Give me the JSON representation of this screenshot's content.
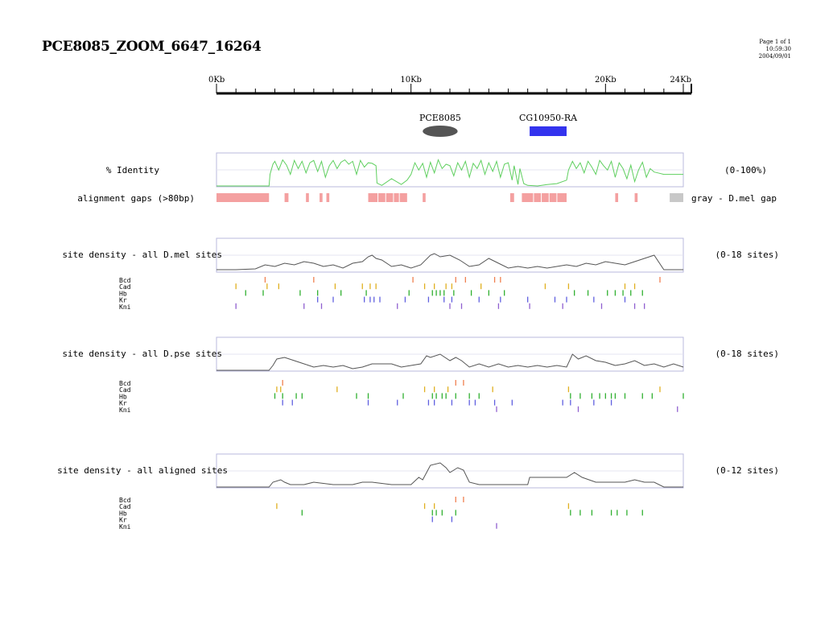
{
  "page": {
    "title": "PCE8085_ZOOM_6647_16264",
    "page_label": "Page 1 of 1",
    "time": "10:59:30",
    "date": "2004/09/01"
  },
  "colors": {
    "identity_line": "#5fcf5f",
    "gap_pink": "#f4a0a0",
    "gap_gray": "#c8c8c8",
    "panel_border": "#b8b8dc",
    "density_line": "#555555",
    "gene_blue": "#3333ee",
    "ellipse_fill": "#555555",
    "Bcd": "#f08050",
    "Cad": "#e0b020",
    "Hb": "#30b030",
    "Kr": "#6060e0",
    "Kni": "#9060d0"
  },
  "chart_data": {
    "type": "genome-track",
    "axis": {
      "unit": "Kb",
      "range": [
        0,
        24
      ],
      "tick_labels": [
        {
          "kb": 0,
          "label": "0Kb"
        },
        {
          "kb": 10,
          "label": "10Kb"
        },
        {
          "kb": 20,
          "label": "20Kb"
        },
        {
          "kb": 24,
          "label": "24Kb"
        }
      ]
    },
    "features": [
      {
        "name": "PCE8085",
        "shape": "ellipse",
        "start": 10.6,
        "end": 12.4
      },
      {
        "name": "CG10950-RA",
        "shape": "box",
        "start": 16.1,
        "end": 18.0
      }
    ],
    "identity": {
      "label": "% Identity",
      "range_label": "(0-100%)",
      "ylim": [
        0,
        100
      ],
      "x": [
        0,
        2.7,
        2.75,
        2.9,
        3.0,
        3.2,
        3.4,
        3.6,
        3.8,
        4.0,
        4.2,
        4.4,
        4.6,
        4.8,
        5.0,
        5.2,
        5.4,
        5.6,
        5.8,
        6.0,
        6.2,
        6.4,
        6.6,
        6.8,
        7.0,
        7.2,
        7.4,
        7.6,
        7.8,
        8.0,
        8.2,
        8.25,
        8.5,
        9.0,
        9.5,
        9.8,
        10.0,
        10.2,
        10.4,
        10.6,
        10.8,
        11.0,
        11.2,
        11.4,
        11.6,
        11.8,
        12.0,
        12.2,
        12.4,
        12.6,
        12.8,
        13.0,
        13.2,
        13.4,
        13.6,
        13.8,
        14.0,
        14.2,
        14.4,
        14.6,
        14.8,
        15.0,
        15.2,
        15.3,
        15.5,
        15.6,
        15.8,
        16.0,
        16.5,
        17.0,
        17.5,
        18.0,
        18.1,
        18.3,
        18.5,
        18.7,
        18.9,
        19.1,
        19.3,
        19.5,
        19.7,
        19.9,
        20.1,
        20.3,
        20.5,
        20.7,
        20.9,
        21.1,
        21.3,
        21.5,
        21.7,
        21.9,
        22.1,
        22.3,
        22.5,
        22.7,
        23.0,
        23.5,
        24.0
      ],
      "y": [
        0,
        0,
        40,
        75,
        85,
        55,
        90,
        72,
        40,
        88,
        60,
        85,
        45,
        80,
        88,
        50,
        85,
        30,
        70,
        88,
        60,
        82,
        90,
        75,
        85,
        40,
        88,
        65,
        80,
        78,
        70,
        10,
        2,
        25,
        5,
        20,
        40,
        80,
        55,
        78,
        30,
        82,
        45,
        90,
        60,
        75,
        70,
        35,
        80,
        55,
        85,
        30,
        78,
        60,
        88,
        40,
        80,
        50,
        85,
        30,
        75,
        80,
        20,
        70,
        5,
        60,
        8,
        2,
        0,
        5,
        8,
        20,
        55,
        85,
        60,
        80,
        45,
        85,
        65,
        40,
        88,
        70,
        55,
        85,
        30,
        80,
        60,
        25,
        72,
        15,
        55,
        82,
        30,
        60,
        48,
        45,
        40,
        40,
        40
      ]
    },
    "gaps": {
      "label": "alignment gaps (>80bp)",
      "note": "gray - D.mel gap",
      "pink": [
        [
          0.0,
          2.7
        ],
        [
          3.5,
          3.7
        ],
        [
          4.6,
          4.75
        ],
        [
          5.3,
          5.45
        ],
        [
          5.65,
          5.8
        ],
        [
          7.8,
          9.8
        ],
        [
          10.6,
          10.75
        ],
        [
          15.1,
          15.3
        ],
        [
          15.7,
          18.0
        ],
        [
          20.5,
          20.65
        ],
        [
          21.5,
          21.65
        ]
      ],
      "gray": [
        [
          23.3,
          24.0
        ]
      ]
    },
    "groups": [
      {
        "label": "site density - all D.mel sites",
        "range_label": "(0-18 sites)",
        "ylim": [
          0,
          18
        ],
        "density": {
          "x": [
            0,
            1,
            2,
            2.5,
            3,
            3.5,
            4,
            4.5,
            5,
            5.5,
            6,
            6.5,
            7,
            7.5,
            7.8,
            8,
            8.2,
            8.5,
            9,
            9.5,
            10,
            10.5,
            11,
            11.2,
            11.5,
            12,
            12.5,
            13,
            13.5,
            14,
            14.5,
            15,
            15.5,
            16,
            16.5,
            17,
            17.5,
            18,
            18.5,
            19,
            19.5,
            20,
            20.5,
            21,
            21.5,
            22,
            22.5,
            23,
            24
          ],
          "y": [
            1,
            1,
            1.5,
            4,
            3,
            5,
            4,
            6,
            5,
            3,
            4,
            2,
            5,
            6,
            9,
            10,
            8,
            7,
            3,
            4,
            2,
            4,
            10,
            11,
            9,
            10,
            7,
            3,
            4,
            8,
            5,
            2,
            3,
            2,
            3,
            2,
            3,
            4,
            3,
            5,
            4,
            6,
            5,
            4,
            6,
            8,
            10,
            1,
            1
          ]
        },
        "sites": {
          "Bcd": [
            2.5,
            5.0,
            10.1,
            12.3,
            12.8,
            14.3,
            14.6,
            22.8
          ],
          "Cad": [
            1.0,
            2.6,
            3.2,
            6.1,
            7.5,
            7.9,
            8.2,
            10.7,
            11.2,
            11.8,
            12.1,
            13.6,
            16.9,
            18.1,
            21.0,
            21.5
          ],
          "Hb": [
            1.5,
            2.4,
            4.3,
            5.2,
            6.4,
            7.7,
            9.9,
            11.1,
            11.3,
            11.5,
            11.7,
            12.2,
            13.1,
            14.0,
            14.8,
            18.4,
            19.1,
            20.1,
            20.5,
            20.9,
            21.3,
            21.9
          ],
          "Kr": [
            5.2,
            6.0,
            7.6,
            7.9,
            8.1,
            8.4,
            9.7,
            10.9,
            11.7,
            12.1,
            13.5,
            14.6,
            16.0,
            17.4,
            18.0,
            19.4,
            21.0
          ],
          "Kni": [
            1.0,
            4.5,
            5.4,
            9.3,
            12.0,
            12.6,
            14.5,
            16.1,
            17.8,
            19.8,
            21.5,
            22.0
          ]
        }
      },
      {
        "label": "site density - all D.pse sites",
        "range_label": "(0-18 sites)",
        "ylim": [
          0,
          18
        ],
        "density": {
          "x": [
            0,
            2.7,
            2.9,
            3.1,
            3.5,
            4,
            4.5,
            5,
            5.5,
            6,
            6.5,
            7,
            7.5,
            8,
            9,
            9.5,
            10,
            10.5,
            10.8,
            11,
            11.5,
            12,
            12.3,
            12.6,
            13,
            13.5,
            14,
            14.5,
            15,
            15.5,
            16,
            16.5,
            17,
            17.5,
            18,
            18.3,
            18.6,
            19,
            19.5,
            20,
            20.5,
            21,
            21.5,
            22,
            22.5,
            23,
            23.5,
            24
          ],
          "y": [
            0,
            0,
            3,
            7,
            8,
            6,
            4,
            2,
            3,
            2,
            3,
            1,
            2,
            4,
            4,
            2,
            3,
            4,
            9,
            8,
            10,
            6,
            8,
            6,
            2,
            4,
            2,
            4,
            2,
            3,
            2,
            3,
            2,
            3,
            2,
            10,
            7,
            9,
            6,
            5,
            3,
            4,
            6,
            3,
            4,
            2,
            4,
            2
          ]
        },
        "sites": {
          "Bcd": [
            3.4,
            12.3,
            12.7
          ],
          "Cad": [
            3.1,
            3.3,
            6.2,
            10.7,
            11.2,
            11.9,
            14.2,
            18.1,
            22.8
          ],
          "Hb": [
            3.0,
            3.4,
            4.1,
            4.4,
            7.2,
            7.8,
            9.6,
            11.1,
            11.3,
            11.6,
            11.8,
            12.3,
            13.0,
            13.5,
            18.2,
            18.7,
            19.3,
            19.7,
            20.0,
            20.3,
            20.5,
            21.0,
            21.9,
            22.4,
            24.0
          ],
          "Kr": [
            3.4,
            3.9,
            7.8,
            9.3,
            10.9,
            11.2,
            12.1,
            13.0,
            13.3,
            14.3,
            15.2,
            17.8,
            18.2,
            19.4,
            20.3
          ],
          "Kni": [
            14.4,
            18.6,
            23.7
          ]
        }
      },
      {
        "label": "site density - all aligned sites",
        "range_label": "(0-12 sites)",
        "ylim": [
          0,
          12
        ],
        "density": {
          "x": [
            0,
            2.7,
            2.9,
            3.3,
            3.5,
            3.8,
            4.5,
            5,
            6,
            7,
            7.5,
            8,
            9,
            10,
            10.4,
            10.6,
            11,
            11.5,
            11.8,
            12,
            12.4,
            12.7,
            13,
            13.5,
            14,
            15,
            15.5,
            16,
            16.1,
            16.5,
            17,
            17.5,
            18,
            18.4,
            18.8,
            19.5,
            20,
            21,
            21.5,
            22,
            22.5,
            23,
            24
          ],
          "y": [
            0,
            0,
            2,
            3,
            2,
            1,
            1,
            2,
            1,
            1,
            2,
            2,
            1,
            1,
            4,
            3,
            9,
            10,
            8,
            6,
            8,
            7,
            2,
            1,
            1,
            1,
            1,
            1,
            4,
            4,
            4,
            4,
            4,
            6,
            4,
            2,
            2,
            2,
            3,
            2,
            2,
            0,
            0
          ]
        },
        "sites": {
          "Bcd": [
            12.3,
            12.7
          ],
          "Cad": [
            3.1,
            10.7,
            11.2,
            18.1
          ],
          "Hb": [
            4.4,
            11.1,
            11.3,
            11.6,
            12.3,
            18.2,
            18.7,
            19.3,
            20.3,
            20.6,
            21.1,
            21.9
          ],
          "Kr": [
            11.1,
            12.1
          ],
          "Kni": [
            14.4
          ]
        }
      }
    ]
  }
}
